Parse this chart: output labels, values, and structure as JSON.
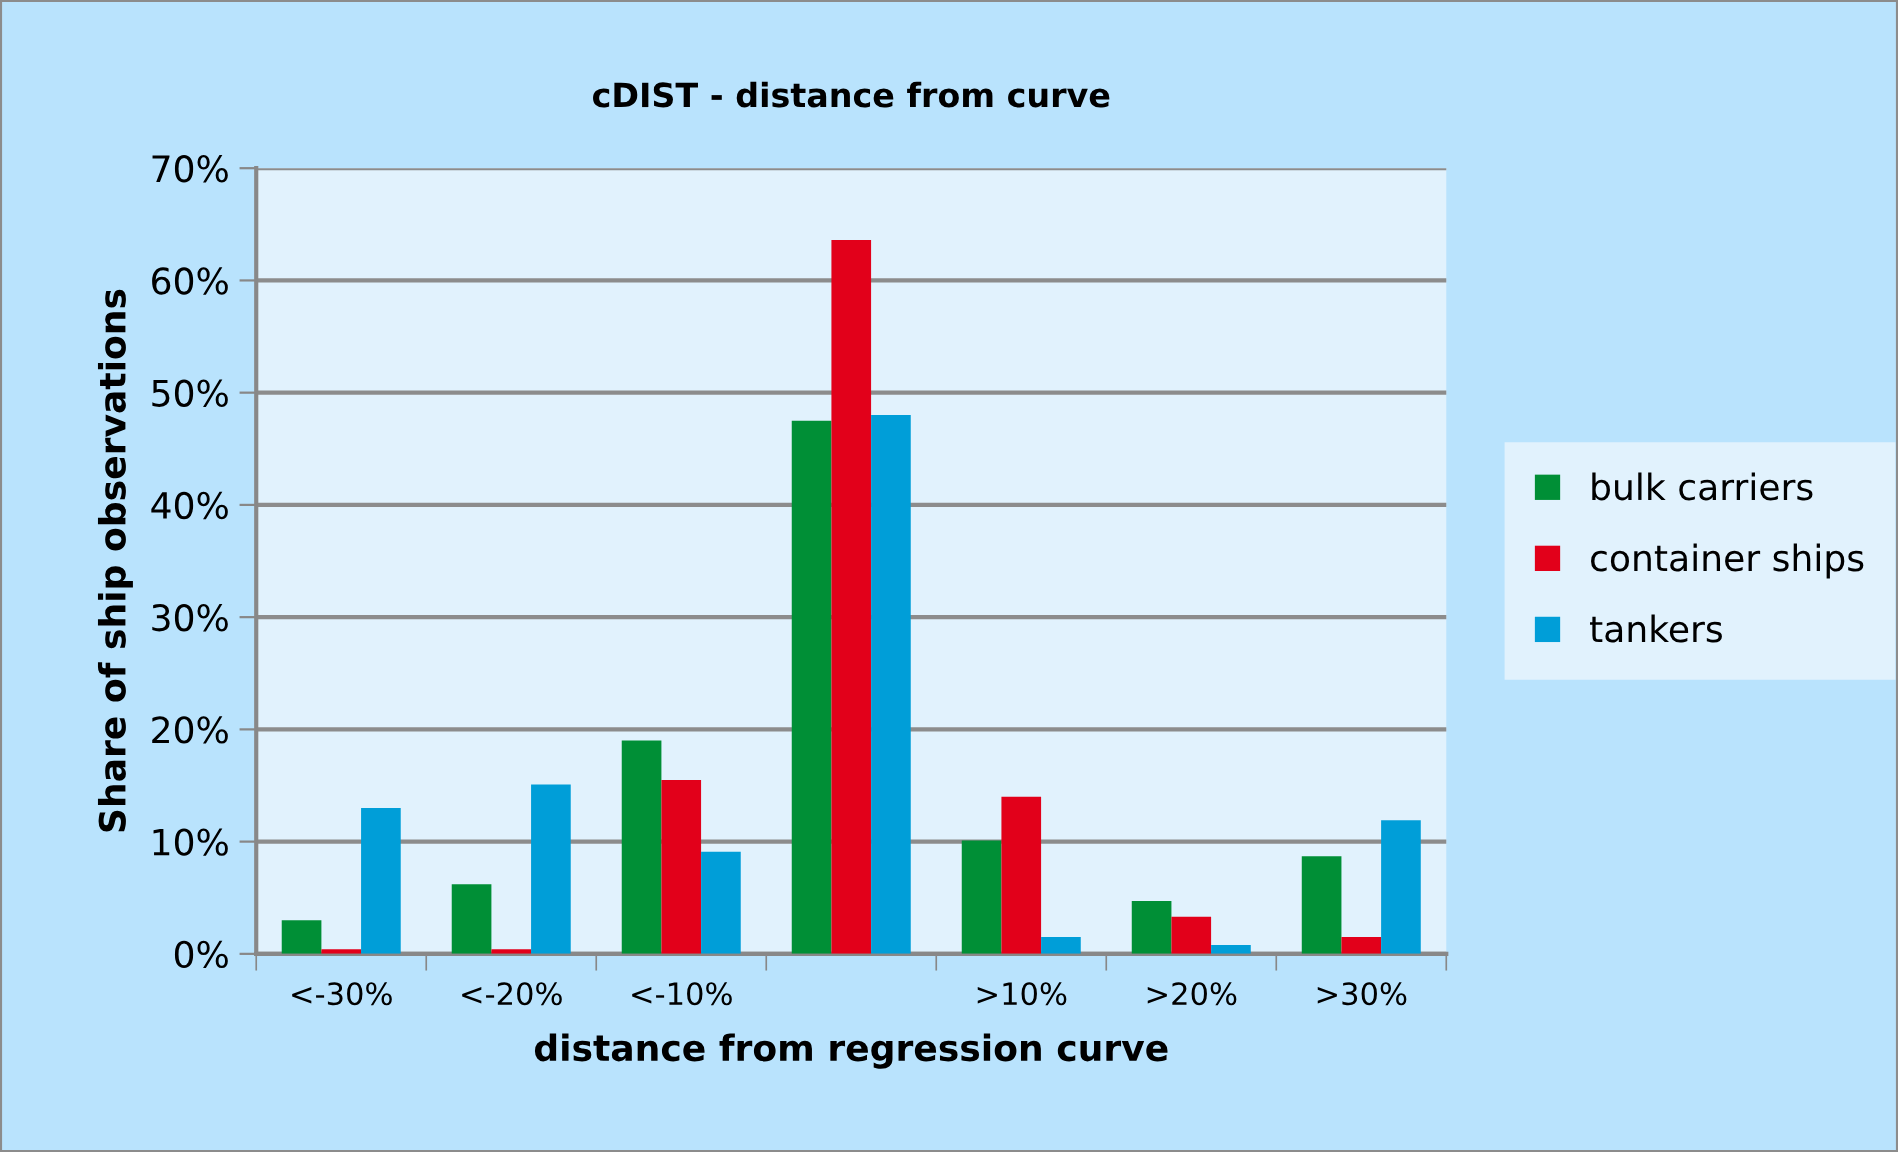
{
  "chart_data": {
    "type": "bar",
    "title": "cDIST - distance from curve",
    "xlabel": "distance from regression curve",
    "ylabel": "Share of ship observations",
    "categories": [
      "<-30%",
      "<-20%",
      "<-10%",
      null,
      ">10%",
      ">20%",
      ">30%"
    ],
    "series": [
      {
        "name": "bulk carriers",
        "color": "#008f36",
        "values": [
          3.0,
          6.2,
          19.0,
          47.5,
          10.1,
          4.7,
          8.7
        ]
      },
      {
        "name": "container ships",
        "color": "#e2001a",
        "values": [
          0.4,
          0.4,
          15.5,
          63.6,
          14.0,
          3.3,
          1.5
        ]
      },
      {
        "name": "tankers",
        "color": "#009ed8",
        "values": [
          13.0,
          15.1,
          9.1,
          48.0,
          1.5,
          0.8,
          11.9
        ]
      }
    ],
    "ylim": [
      0,
      70
    ],
    "yticks": [
      {
        "value": 0,
        "label": "0%"
      },
      {
        "value": 10,
        "label": "10%"
      },
      {
        "value": 20,
        "label": "20%"
      },
      {
        "value": 30,
        "label": "30%"
      },
      {
        "value": 40,
        "label": "40%"
      },
      {
        "value": 50,
        "label": "50%"
      },
      {
        "value": 60,
        "label": "60%"
      },
      {
        "value": 70,
        "label": "70%"
      }
    ],
    "grid": "y",
    "legend": "right"
  }
}
